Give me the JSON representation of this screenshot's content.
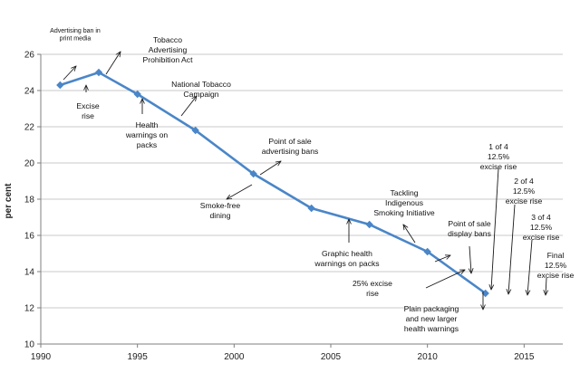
{
  "chart_data": {
    "type": "line",
    "title": "",
    "xlabel": "",
    "ylabel": "per cent",
    "xlim": [
      1990,
      2017
    ],
    "ylim": [
      10,
      26
    ],
    "x_ticks": [
      "1990",
      "1995",
      "2000",
      "2005",
      "2010",
      "2015"
    ],
    "y_ticks": [
      "10",
      "12",
      "14",
      "16",
      "18",
      "20",
      "22",
      "24",
      "26"
    ],
    "grid": true,
    "legend": "none",
    "series": [
      {
        "x": [
          1991,
          1993,
          1995,
          1998,
          2001,
          2004,
          2007,
          2010,
          2013
        ],
        "y": [
          24.3,
          25.0,
          23.8,
          21.8,
          19.4,
          17.5,
          16.6,
          15.1,
          12.8
        ]
      }
    ],
    "annotations": [
      {
        "id": "ad-ban-print",
        "lines": [
          "Advertising ban in",
          "print media"
        ]
      },
      {
        "id": "tobacco-ad-prohibition",
        "lines": [
          "Tobacco",
          "Advertising",
          "Prohibition Act"
        ]
      },
      {
        "id": "excise-rise-1",
        "lines": [
          "Excise",
          "rise"
        ]
      },
      {
        "id": "health-warnings",
        "lines": [
          "Health",
          "warnings on",
          "packs"
        ]
      },
      {
        "id": "national-campaign",
        "lines": [
          "National Tobacco",
          "Campaign"
        ]
      },
      {
        "id": "point-of-sale-ad-bans",
        "lines": [
          "Point of sale",
          "advertising bans"
        ]
      },
      {
        "id": "smoke-free-dining",
        "lines": [
          "Smoke-free",
          "dining"
        ]
      },
      {
        "id": "graphic-health-warnings",
        "lines": [
          "Graphic health",
          "warnings on packs"
        ]
      },
      {
        "id": "tackling-indigenous",
        "lines": [
          "Tackling",
          "Indigenous",
          "Smoking Initiative"
        ]
      },
      {
        "id": "point-of-sale-display-bans",
        "lines": [
          "Point of sale",
          "display bans"
        ]
      },
      {
        "id": "excise-rise-25",
        "lines": [
          "25% excise",
          "rise"
        ]
      },
      {
        "id": "plain-packaging",
        "lines": [
          "Plain packaging",
          "and new larger",
          "health warnings"
        ]
      },
      {
        "id": "excise-1-of-4",
        "lines": [
          "1 of 4",
          "12.5%",
          "excise rise"
        ]
      },
      {
        "id": "excise-2-of-4",
        "lines": [
          "2 of 4",
          "12.5%",
          "excise rise"
        ]
      },
      {
        "id": "excise-3-of-4",
        "lines": [
          "3 of 4",
          "12.5%",
          "excise rise"
        ]
      },
      {
        "id": "excise-final",
        "lines": [
          "Final",
          "12.5%",
          "excise rise"
        ]
      }
    ]
  }
}
